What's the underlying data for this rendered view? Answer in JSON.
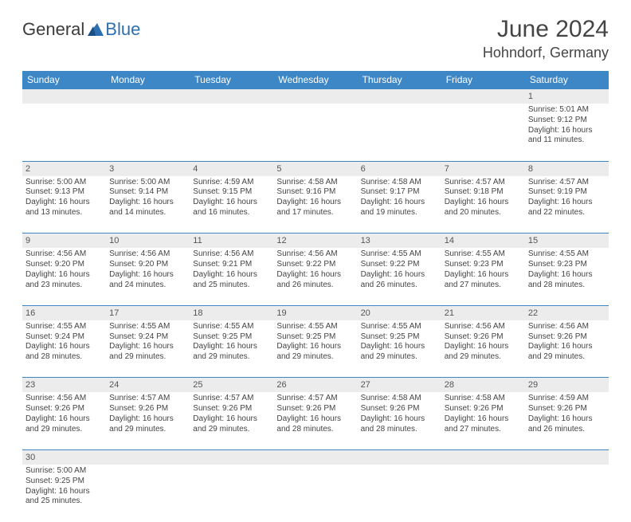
{
  "logo": {
    "word1": "General",
    "word2": "Blue"
  },
  "title": "June 2024",
  "location": "Hohndorf, Germany",
  "dayHeaders": [
    "Sunday",
    "Monday",
    "Tuesday",
    "Wednesday",
    "Thursday",
    "Friday",
    "Saturday"
  ],
  "colors": {
    "headerBg": "#3d87c7",
    "headerText": "#ffffff",
    "dayNumBg": "#ececec",
    "border": "#3d87c7",
    "text": "#444444"
  },
  "weeks": [
    [
      null,
      null,
      null,
      null,
      null,
      null,
      {
        "n": "1",
        "sr": "Sunrise: 5:01 AM",
        "ss": "Sunset: 9:12 PM",
        "d1": "Daylight: 16 hours",
        "d2": "and 11 minutes."
      }
    ],
    [
      {
        "n": "2",
        "sr": "Sunrise: 5:00 AM",
        "ss": "Sunset: 9:13 PM",
        "d1": "Daylight: 16 hours",
        "d2": "and 13 minutes."
      },
      {
        "n": "3",
        "sr": "Sunrise: 5:00 AM",
        "ss": "Sunset: 9:14 PM",
        "d1": "Daylight: 16 hours",
        "d2": "and 14 minutes."
      },
      {
        "n": "4",
        "sr": "Sunrise: 4:59 AM",
        "ss": "Sunset: 9:15 PM",
        "d1": "Daylight: 16 hours",
        "d2": "and 16 minutes."
      },
      {
        "n": "5",
        "sr": "Sunrise: 4:58 AM",
        "ss": "Sunset: 9:16 PM",
        "d1": "Daylight: 16 hours",
        "d2": "and 17 minutes."
      },
      {
        "n": "6",
        "sr": "Sunrise: 4:58 AM",
        "ss": "Sunset: 9:17 PM",
        "d1": "Daylight: 16 hours",
        "d2": "and 19 minutes."
      },
      {
        "n": "7",
        "sr": "Sunrise: 4:57 AM",
        "ss": "Sunset: 9:18 PM",
        "d1": "Daylight: 16 hours",
        "d2": "and 20 minutes."
      },
      {
        "n": "8",
        "sr": "Sunrise: 4:57 AM",
        "ss": "Sunset: 9:19 PM",
        "d1": "Daylight: 16 hours",
        "d2": "and 22 minutes."
      }
    ],
    [
      {
        "n": "9",
        "sr": "Sunrise: 4:56 AM",
        "ss": "Sunset: 9:20 PM",
        "d1": "Daylight: 16 hours",
        "d2": "and 23 minutes."
      },
      {
        "n": "10",
        "sr": "Sunrise: 4:56 AM",
        "ss": "Sunset: 9:20 PM",
        "d1": "Daylight: 16 hours",
        "d2": "and 24 minutes."
      },
      {
        "n": "11",
        "sr": "Sunrise: 4:56 AM",
        "ss": "Sunset: 9:21 PM",
        "d1": "Daylight: 16 hours",
        "d2": "and 25 minutes."
      },
      {
        "n": "12",
        "sr": "Sunrise: 4:56 AM",
        "ss": "Sunset: 9:22 PM",
        "d1": "Daylight: 16 hours",
        "d2": "and 26 minutes."
      },
      {
        "n": "13",
        "sr": "Sunrise: 4:55 AM",
        "ss": "Sunset: 9:22 PM",
        "d1": "Daylight: 16 hours",
        "d2": "and 26 minutes."
      },
      {
        "n": "14",
        "sr": "Sunrise: 4:55 AM",
        "ss": "Sunset: 9:23 PM",
        "d1": "Daylight: 16 hours",
        "d2": "and 27 minutes."
      },
      {
        "n": "15",
        "sr": "Sunrise: 4:55 AM",
        "ss": "Sunset: 9:23 PM",
        "d1": "Daylight: 16 hours",
        "d2": "and 28 minutes."
      }
    ],
    [
      {
        "n": "16",
        "sr": "Sunrise: 4:55 AM",
        "ss": "Sunset: 9:24 PM",
        "d1": "Daylight: 16 hours",
        "d2": "and 28 minutes."
      },
      {
        "n": "17",
        "sr": "Sunrise: 4:55 AM",
        "ss": "Sunset: 9:24 PM",
        "d1": "Daylight: 16 hours",
        "d2": "and 29 minutes."
      },
      {
        "n": "18",
        "sr": "Sunrise: 4:55 AM",
        "ss": "Sunset: 9:25 PM",
        "d1": "Daylight: 16 hours",
        "d2": "and 29 minutes."
      },
      {
        "n": "19",
        "sr": "Sunrise: 4:55 AM",
        "ss": "Sunset: 9:25 PM",
        "d1": "Daylight: 16 hours",
        "d2": "and 29 minutes."
      },
      {
        "n": "20",
        "sr": "Sunrise: 4:55 AM",
        "ss": "Sunset: 9:25 PM",
        "d1": "Daylight: 16 hours",
        "d2": "and 29 minutes."
      },
      {
        "n": "21",
        "sr": "Sunrise: 4:56 AM",
        "ss": "Sunset: 9:26 PM",
        "d1": "Daylight: 16 hours",
        "d2": "and 29 minutes."
      },
      {
        "n": "22",
        "sr": "Sunrise: 4:56 AM",
        "ss": "Sunset: 9:26 PM",
        "d1": "Daylight: 16 hours",
        "d2": "and 29 minutes."
      }
    ],
    [
      {
        "n": "23",
        "sr": "Sunrise: 4:56 AM",
        "ss": "Sunset: 9:26 PM",
        "d1": "Daylight: 16 hours",
        "d2": "and 29 minutes."
      },
      {
        "n": "24",
        "sr": "Sunrise: 4:57 AM",
        "ss": "Sunset: 9:26 PM",
        "d1": "Daylight: 16 hours",
        "d2": "and 29 minutes."
      },
      {
        "n": "25",
        "sr": "Sunrise: 4:57 AM",
        "ss": "Sunset: 9:26 PM",
        "d1": "Daylight: 16 hours",
        "d2": "and 29 minutes."
      },
      {
        "n": "26",
        "sr": "Sunrise: 4:57 AM",
        "ss": "Sunset: 9:26 PM",
        "d1": "Daylight: 16 hours",
        "d2": "and 28 minutes."
      },
      {
        "n": "27",
        "sr": "Sunrise: 4:58 AM",
        "ss": "Sunset: 9:26 PM",
        "d1": "Daylight: 16 hours",
        "d2": "and 28 minutes."
      },
      {
        "n": "28",
        "sr": "Sunrise: 4:58 AM",
        "ss": "Sunset: 9:26 PM",
        "d1": "Daylight: 16 hours",
        "d2": "and 27 minutes."
      },
      {
        "n": "29",
        "sr": "Sunrise: 4:59 AM",
        "ss": "Sunset: 9:26 PM",
        "d1": "Daylight: 16 hours",
        "d2": "and 26 minutes."
      }
    ],
    [
      {
        "n": "30",
        "sr": "Sunrise: 5:00 AM",
        "ss": "Sunset: 9:25 PM",
        "d1": "Daylight: 16 hours",
        "d2": "and 25 minutes."
      },
      null,
      null,
      null,
      null,
      null,
      null
    ]
  ]
}
